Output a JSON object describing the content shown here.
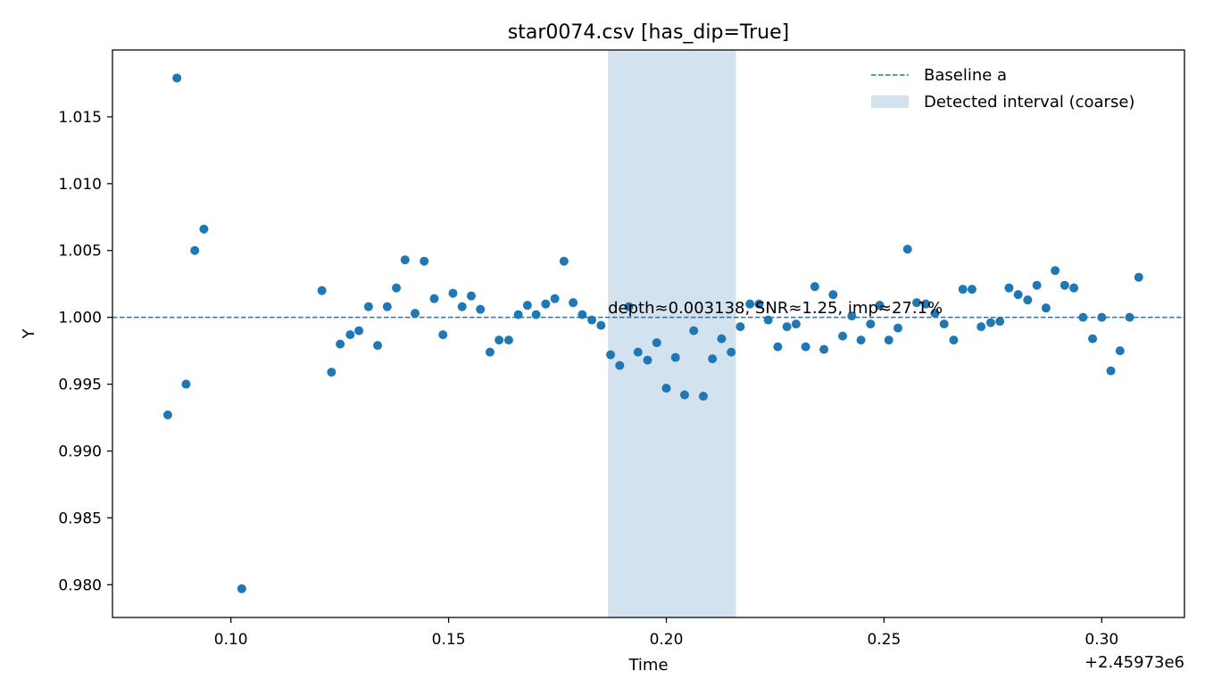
{
  "chart_data": {
    "type": "scatter",
    "title": "star0074.csv [has_dip=True]",
    "xlabel": "Time",
    "ylabel": "Y",
    "x_offset_label": "+2.45973e6",
    "xlim": [
      0.0728,
      0.319
    ],
    "ylim": [
      0.97755,
      1.02
    ],
    "xticks": [
      0.1,
      0.15,
      0.2,
      0.25,
      0.3
    ],
    "xtick_labels": [
      "0.10",
      "0.15",
      "0.20",
      "0.25",
      "0.30"
    ],
    "yticks": [
      0.98,
      0.985,
      0.99,
      0.995,
      1.0,
      1.005,
      1.01,
      1.015
    ],
    "ytick_labels": [
      "0.980",
      "0.985",
      "0.990",
      "0.995",
      "1.000",
      "1.005",
      "1.010",
      "1.015"
    ],
    "grid": false,
    "legend_position": "top-right",
    "legend": [
      {
        "label": "Baseline a",
        "kind": "dashed-line"
      },
      {
        "label": "Detected interval (coarse)",
        "kind": "band"
      }
    ],
    "baseline": 1.0,
    "interval": [
      0.1866,
      0.216
    ],
    "annotation": {
      "text": "depth≈0.003138, SNR≈1.25, imp≈27.1%",
      "x": 0.1866,
      "y": 1.0003
    },
    "colors": {
      "points": "#1f77b4",
      "baseline": "#1f77b4",
      "band": "#aecbe2"
    },
    "series": [
      {
        "points": [
          [
            0.0855,
            0.9927
          ],
          [
            0.0876,
            1.0179
          ],
          [
            0.0897,
            0.995
          ],
          [
            0.0917,
            1.005
          ],
          [
            0.0938,
            1.0066
          ],
          [
            0.1025,
            0.9797
          ],
          [
            0.1209,
            1.002
          ],
          [
            0.1231,
            0.9959
          ],
          [
            0.1251,
            0.998
          ],
          [
            0.1274,
            0.9987
          ],
          [
            0.1294,
            0.999
          ],
          [
            0.1316,
            1.0008
          ],
          [
            0.1337,
            0.9979
          ],
          [
            0.1359,
            1.0008
          ],
          [
            0.138,
            1.0022
          ],
          [
            0.14,
            1.0043
          ],
          [
            0.1423,
            1.0003
          ],
          [
            0.1444,
            1.0042
          ],
          [
            0.1467,
            1.0014
          ],
          [
            0.1487,
            0.9987
          ],
          [
            0.151,
            1.0018
          ],
          [
            0.1531,
            1.0008
          ],
          [
            0.1552,
            1.0016
          ],
          [
            0.1573,
            1.0006
          ],
          [
            0.1595,
            0.9974
          ],
          [
            0.1616,
            0.9983
          ],
          [
            0.1638,
            0.9983
          ],
          [
            0.166,
            1.0002
          ],
          [
            0.1681,
            1.0009
          ],
          [
            0.1701,
            1.0002
          ],
          [
            0.1723,
            1.001
          ],
          [
            0.1744,
            1.0014
          ],
          [
            0.1765,
            1.0042
          ],
          [
            0.1786,
            1.0011
          ],
          [
            0.1807,
            1.0002
          ],
          [
            0.1829,
            0.9998
          ],
          [
            0.185,
            0.9994
          ],
          [
            0.1872,
            0.9972
          ],
          [
            0.1893,
            0.9964
          ],
          [
            0.1914,
            1.0008
          ],
          [
            0.1935,
            0.9974
          ],
          [
            0.1957,
            0.9968
          ],
          [
            0.1978,
            0.9981
          ],
          [
            0.2,
            0.9947
          ],
          [
            0.2021,
            0.997
          ],
          [
            0.2042,
            0.9942
          ],
          [
            0.2063,
            0.999
          ],
          [
            0.2085,
            0.9941
          ],
          [
            0.2106,
            0.9969
          ],
          [
            0.2127,
            0.9984
          ],
          [
            0.2149,
            0.9974
          ],
          [
            0.217,
            0.9993
          ],
          [
            0.2192,
            1.001
          ],
          [
            0.2213,
            1.001
          ],
          [
            0.2234,
            0.9998
          ],
          [
            0.2256,
            0.9978
          ],
          [
            0.2277,
            0.9993
          ],
          [
            0.2298,
            0.9995
          ],
          [
            0.232,
            0.9978
          ],
          [
            0.2341,
            1.0023
          ],
          [
            0.2362,
            0.9976
          ],
          [
            0.2383,
            1.0017
          ],
          [
            0.2405,
            0.9986
          ],
          [
            0.2426,
            1.0001
          ],
          [
            0.2447,
            0.9983
          ],
          [
            0.2469,
            0.9995
          ],
          [
            0.249,
            1.0009
          ],
          [
            0.2511,
            0.9983
          ],
          [
            0.2532,
            0.9992
          ],
          [
            0.2554,
            1.0051
          ],
          [
            0.2575,
            1.0011
          ],
          [
            0.2596,
            1.001
          ],
          [
            0.2617,
            1.0003
          ],
          [
            0.2638,
            0.9995
          ],
          [
            0.266,
            0.9983
          ],
          [
            0.2681,
            1.0021
          ],
          [
            0.2702,
            1.0021
          ],
          [
            0.2723,
            0.9993
          ],
          [
            0.2745,
            0.9996
          ],
          [
            0.2766,
            0.9997
          ],
          [
            0.2787,
            1.0022
          ],
          [
            0.2808,
            1.0017
          ],
          [
            0.283,
            1.0013
          ],
          [
            0.2851,
            1.0024
          ],
          [
            0.2872,
            1.0007
          ],
          [
            0.2893,
            1.0035
          ],
          [
            0.2915,
            1.0024
          ],
          [
            0.2936,
            1.0022
          ],
          [
            0.2957,
            1.0
          ],
          [
            0.2979,
            0.9984
          ],
          [
            0.3,
            1.0
          ],
          [
            0.3021,
            0.996
          ],
          [
            0.3042,
            0.9975
          ],
          [
            0.3064,
            1.0
          ],
          [
            0.3085,
            1.003
          ]
        ]
      }
    ]
  }
}
